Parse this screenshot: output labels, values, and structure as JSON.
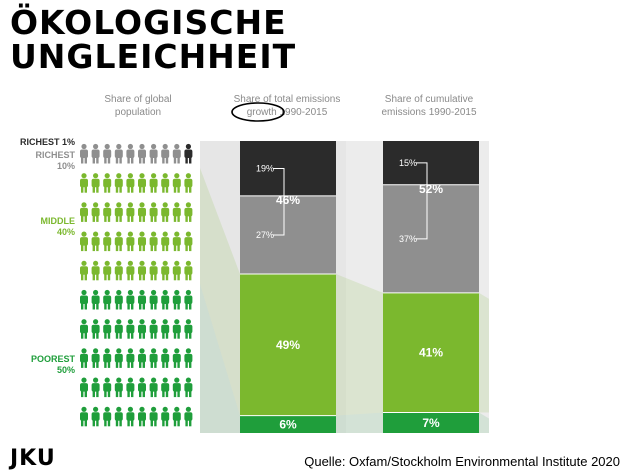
{
  "title": {
    "line1": "ÖKOLOGISCHE",
    "line2": "UNGLEICHHEIT"
  },
  "logo": "JKU",
  "source": "Quelle: Oxfam/Stockholm Environmental Institute 2020",
  "colors": {
    "richest": "#2b2b2b",
    "richest_10": "#8f8f8f",
    "middle": "#7bb82e",
    "poorest": "#1f9e3b",
    "panel": "#e6e6e6",
    "circle": "#000000"
  },
  "chart_data": {
    "type": "bar",
    "headers": {
      "population": [
        "Share of global",
        "population"
      ],
      "growth": [
        "Share of total emissions",
        "growth 1990-2015"
      ],
      "cumulative": [
        "Share of cumulative",
        "emissions 1990-2015"
      ]
    },
    "population_groups": [
      {
        "label_lines": [
          "RICHEST 1%"
        ],
        "color_key": "richest"
      },
      {
        "label_lines": [
          "RICHEST",
          "10%"
        ],
        "color_key": "richest_10"
      },
      {
        "label_lines": [
          "MIDDLE",
          "40%"
        ],
        "color_key": "middle"
      },
      {
        "label_lines": [
          "POOREST",
          "50%"
        ],
        "color_key": "poorest"
      }
    ],
    "icon_rows": [
      {
        "group": "richest_10",
        "count": 10,
        "last_richest": true
      },
      {
        "group": "middle",
        "count": 10
      },
      {
        "group": "middle",
        "count": 10
      },
      {
        "group": "middle",
        "count": 10
      },
      {
        "group": "middle",
        "count": 10
      },
      {
        "group": "poorest",
        "count": 10
      },
      {
        "group": "poorest",
        "count": 10
      },
      {
        "group": "poorest",
        "count": 10
      },
      {
        "group": "poorest",
        "count": 10
      },
      {
        "group": "poorest",
        "count": 10
      }
    ],
    "bars": [
      {
        "name": "Share of total emissions growth 1990-2015",
        "segments": [
          {
            "group": "richest",
            "value": 19,
            "label": "19%"
          },
          {
            "group": "richest_10_rest",
            "value": 27,
            "label": "27%"
          },
          {
            "group": "middle",
            "value": 49,
            "label": "49%"
          },
          {
            "group": "poorest",
            "value": 6,
            "label": "6%"
          }
        ],
        "richest_10_total": {
          "value": 46,
          "label": "46%"
        }
      },
      {
        "name": "Share of cumulative emissions 1990-2015",
        "segments": [
          {
            "group": "richest",
            "value": 15,
            "label": "15%"
          },
          {
            "group": "richest_10_rest",
            "value": 37,
            "label": "37%"
          },
          {
            "group": "middle",
            "value": 41,
            "label": "41%"
          },
          {
            "group": "poorest",
            "value": 7,
            "label": "7%"
          }
        ],
        "richest_10_total": {
          "value": 52,
          "label": "52%"
        }
      }
    ],
    "highlight": "growth"
  }
}
